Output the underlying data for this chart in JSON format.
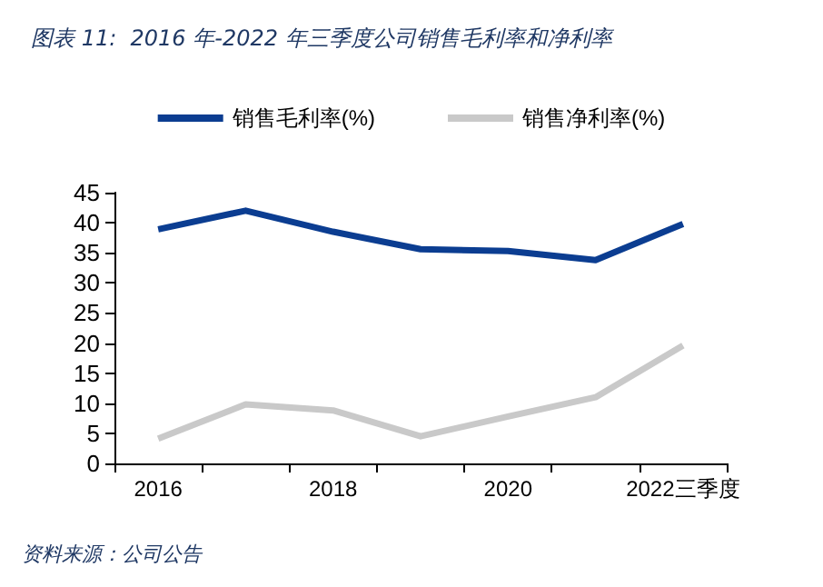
{
  "chart_data": {
    "type": "line",
    "title": "图表 11:  2016 年-2022 年三季度公司销售毛利率和净利率",
    "categories": [
      "2016",
      null,
      "2018",
      null,
      "2020",
      null,
      "2022三季度"
    ],
    "series": [
      {
        "name": "销售毛利率(%)",
        "color": "#0b3d91",
        "values": [
          38.9,
          42,
          38.5,
          35.6,
          35.3,
          33.8,
          39.8
        ]
      },
      {
        "name": "销售净利率(%)",
        "color": "#c9c9c9",
        "values": [
          4.1,
          9.8,
          8.8,
          4.5,
          7.8,
          11,
          19.6
        ]
      }
    ],
    "ylim": [
      0,
      45
    ],
    "yticks": [
      0,
      5,
      10,
      15,
      20,
      25,
      30,
      35,
      40,
      45
    ],
    "grid": false,
    "legend": "top",
    "marker": "none",
    "annotations": [
      "资料来源：公司公告"
    ]
  }
}
